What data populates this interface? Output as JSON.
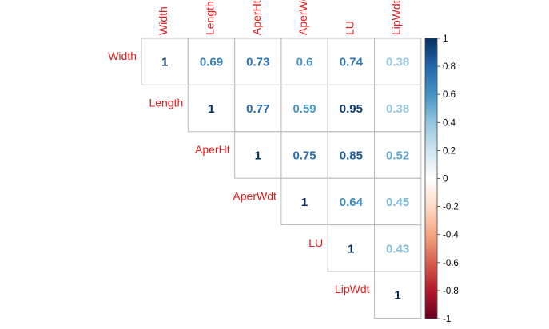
{
  "chart_data": {
    "type": "heatmap",
    "title": "",
    "variables": [
      "Width",
      "Length",
      "AperHt",
      "AperWdt",
      "LU",
      "LipWdt"
    ],
    "matrix": [
      [
        1,
        0.69,
        0.73,
        0.6,
        0.74,
        0.38
      ],
      [
        null,
        1,
        0.77,
        0.59,
        0.95,
        0.38
      ],
      [
        null,
        null,
        1,
        0.75,
        0.85,
        0.52
      ],
      [
        null,
        null,
        null,
        1,
        0.64,
        0.45
      ],
      [
        null,
        null,
        null,
        null,
        1,
        0.43
      ],
      [
        null,
        null,
        null,
        null,
        null,
        1
      ]
    ],
    "value_labels": [
      [
        "1",
        "0.69",
        "0.73",
        "0.6",
        "0.74",
        "0.38"
      ],
      [
        "",
        "1",
        "0.77",
        "0.59",
        "0.95",
        "0.38"
      ],
      [
        "",
        "",
        "1",
        "0.75",
        "0.85",
        "0.52"
      ],
      [
        "",
        "",
        "",
        "1",
        "0.64",
        "0.45"
      ],
      [
        "",
        "",
        "",
        "",
        "1",
        "0.43"
      ],
      [
        "",
        "",
        "",
        "",
        "",
        "1"
      ]
    ],
    "layout": "upper-triangle",
    "label_color": "#e41a1c",
    "colorbar": {
      "range": [
        -1,
        1
      ],
      "ticks": [
        "1",
        "0.8",
        "0.6",
        "0.4",
        "0.2",
        "0",
        "-0.2",
        "-0.4",
        "-0.6",
        "-0.8",
        "-1"
      ],
      "colors_from_high_to_low": [
        "#053061",
        "#2166ac",
        "#4393c3",
        "#92c5de",
        "#d1e5f0",
        "#ffffff",
        "#fddbc7",
        "#f4a582",
        "#d6604d",
        "#b2182b",
        "#67001f"
      ]
    }
  }
}
